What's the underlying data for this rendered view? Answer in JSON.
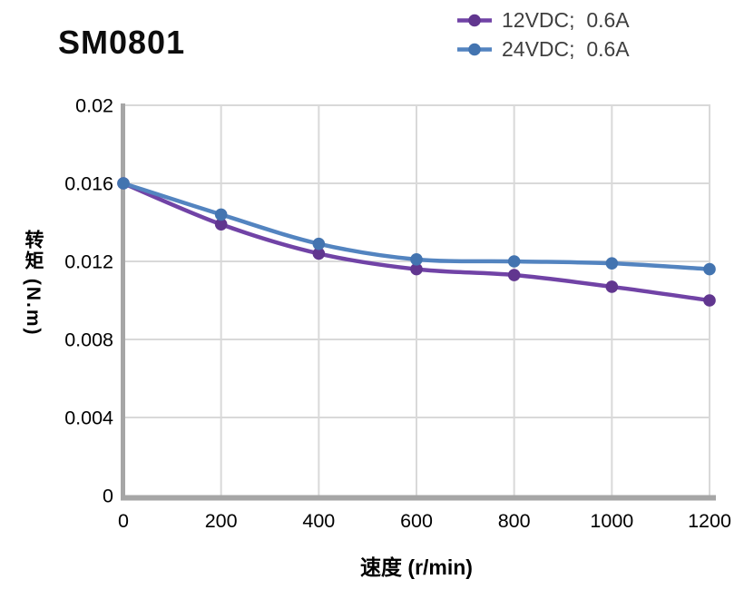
{
  "title": "SM0801",
  "axes": {
    "x_title": "速度 (r/min)",
    "y_title": "转矩 (N.m)"
  },
  "chart_data": {
    "type": "line",
    "title": "SM0801",
    "xlabel": "速度 (r/min)",
    "ylabel": "转矩 (N.m)",
    "x": [
      0,
      200,
      400,
      600,
      800,
      1000,
      1200
    ],
    "series": [
      {
        "name": "12VDC;  0.6A",
        "line_color": "#7143A6",
        "marker_color": "#61368F",
        "values": [
          0.016,
          0.0139,
          0.0124,
          0.0116,
          0.0113,
          0.0107,
          0.01
        ]
      },
      {
        "name": "24VDC;  0.6A",
        "line_color": "#5384C0",
        "marker_color": "#4374B0",
        "values": [
          0.016,
          0.0144,
          0.0129,
          0.0121,
          0.012,
          0.0119,
          0.0116
        ]
      }
    ],
    "xlim": [
      0,
      1200
    ],
    "ylim": [
      0,
      0.02
    ],
    "x_ticks": [
      0,
      200,
      400,
      600,
      800,
      1000,
      1200
    ],
    "x_tick_labels": [
      "0",
      "200",
      "400",
      "600",
      "800",
      "1000",
      "1200"
    ],
    "y_ticks": [
      0,
      0.004,
      0.008,
      0.012,
      0.016,
      0.02
    ],
    "y_tick_labels": [
      "0",
      "0.004",
      "0.008",
      "0.012",
      "0.016",
      "0.02"
    ],
    "grid": true,
    "legend_position": "top-right",
    "axis_color": "#A6A6A6",
    "grid_color": "#D9D9D9",
    "tick_text_color": "#000000",
    "legend_text_color": "#3F3F3F"
  }
}
